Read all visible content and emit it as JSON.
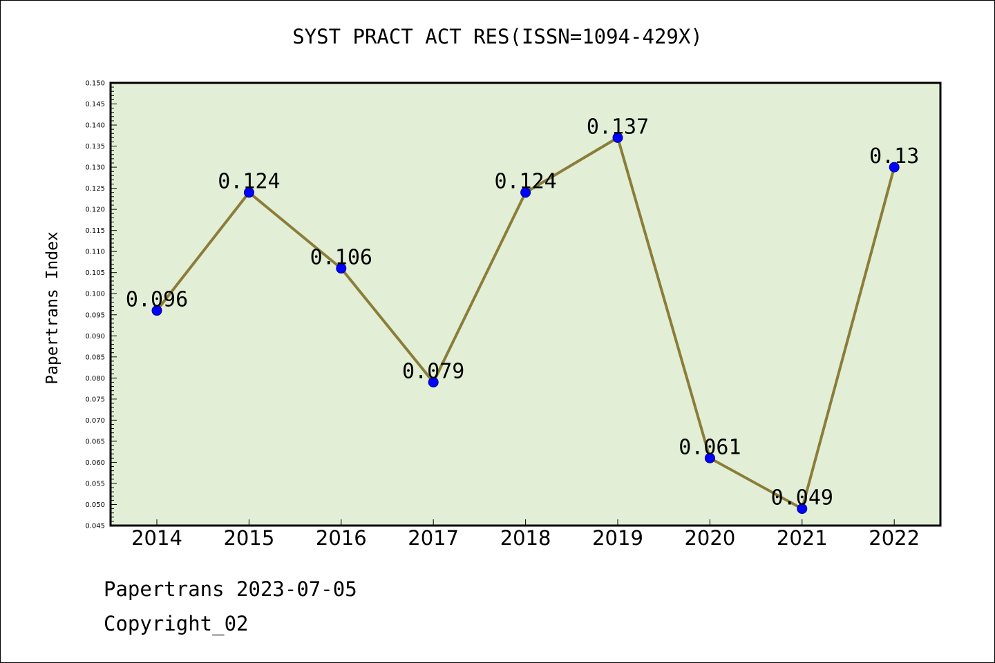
{
  "title": "SYST PRACT ACT RES(ISSN=1094-429X)",
  "footer": {
    "date_line": "Papertrans 2023-07-05",
    "copyright_line": "Copyright_02"
  },
  "colors": {
    "plot_background": "#e2efd6",
    "line": "#8b7d3a",
    "marker": "#0000ff",
    "marker_edge": "#00008b",
    "axis": "#000000"
  },
  "chart_data": {
    "type": "line",
    "title": "SYST PRACT ACT RES(ISSN=1094-429X)",
    "xlabel": "",
    "ylabel": "Papertrans Index",
    "categories": [
      "2014",
      "2015",
      "2016",
      "2017",
      "2018",
      "2019",
      "2020",
      "2021",
      "2022"
    ],
    "series": [
      {
        "values": [
          0.096,
          0.124,
          0.106,
          0.079,
          0.124,
          0.137,
          0.061,
          0.049,
          0.13
        ],
        "data_labels": [
          "0.096",
          "0.124",
          "0.106",
          "0.079",
          "0.124",
          "0.137",
          "0.061",
          "0.049",
          "0.13"
        ]
      }
    ],
    "ylim": [
      0.045,
      0.15
    ],
    "yticks": [
      "0.045",
      "0.050",
      "0.055",
      "0.060",
      "0.065",
      "0.070",
      "0.075",
      "0.080",
      "0.085",
      "0.090",
      "0.095",
      "0.100",
      "0.105",
      "0.110",
      "0.115",
      "0.120",
      "0.125",
      "0.130",
      "0.135",
      "0.140",
      "0.145",
      "0.150"
    ],
    "grid": false,
    "legend": "none"
  }
}
